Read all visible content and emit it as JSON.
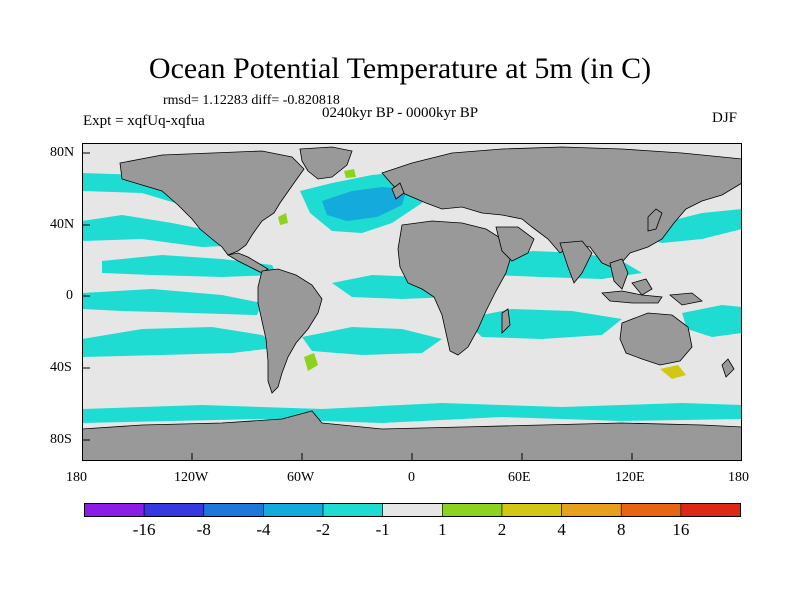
{
  "title": "Ocean Potential Temperature at 5m (in C)",
  "stats_line": "rmsd= 1.12283 diff= -0.820818",
  "experiment": "Expt = xqfUq-xqfua",
  "period": "0240kyr BP - 0000kyr BP",
  "season": "DJF",
  "axes": {
    "x_ticks": [
      "180",
      "120W",
      "60W",
      "0",
      "60E",
      "120E",
      "180"
    ],
    "y_ticks": [
      "80N",
      "40N",
      "0",
      "40S",
      "80S"
    ]
  },
  "colorbar": {
    "labels": [
      "-16",
      "-8",
      "-4",
      "-2",
      "-1",
      "1",
      "2",
      "4",
      "8",
      "16"
    ],
    "colors": [
      "#8a1ee6",
      "#3838e0",
      "#1e78dc",
      "#14aadc",
      "#1edcd2",
      "#e6e6e6",
      "#8cd21e",
      "#d2c814",
      "#e6a01e",
      "#e66414",
      "#dc2814"
    ]
  },
  "palette": {
    "neutral": "#e6e6e6",
    "land": "#999999",
    "cool_1": "#1edcd2",
    "cool_2": "#14aadc",
    "cool_3": "#1e78dc",
    "cool_4": "#3838e0",
    "warm_1": "#8cd21e",
    "warm_2": "#d2c814"
  }
}
